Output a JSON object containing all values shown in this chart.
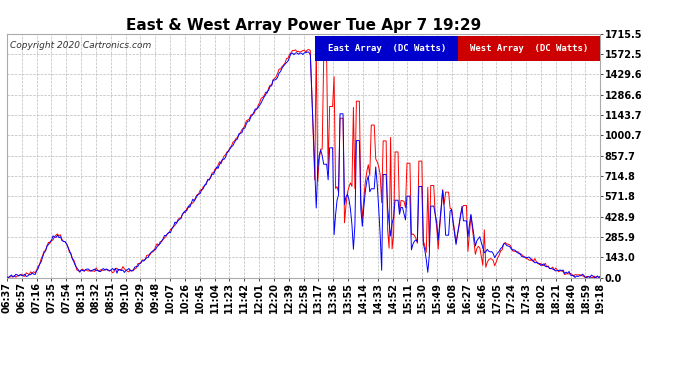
{
  "title": "East & West Array Power Tue Apr 7 19:29",
  "copyright": "Copyright 2020 Cartronics.com",
  "legend_east": "East Array  (DC Watts)",
  "legend_west": "West Array  (DC Watts)",
  "east_color": "#0000ff",
  "west_color": "#ff0000",
  "legend_east_bg": "#0000cc",
  "legend_west_bg": "#cc0000",
  "ymin": 0.0,
  "ymax": 1715.5,
  "yticks": [
    0.0,
    143.0,
    285.9,
    428.9,
    571.8,
    714.8,
    857.7,
    1000.7,
    1143.7,
    1286.6,
    1429.6,
    1572.5,
    1715.5
  ],
  "background_color": "#ffffff",
  "grid_color": "#bbbbbb",
  "title_fontsize": 11,
  "tick_fontsize": 7,
  "label_color": "#000000",
  "x_labels": [
    "06:37",
    "06:57",
    "07:16",
    "07:35",
    "07:54",
    "08:13",
    "08:32",
    "08:51",
    "09:10",
    "09:29",
    "09:48",
    "10:07",
    "10:26",
    "10:45",
    "11:04",
    "11:23",
    "11:42",
    "12:01",
    "12:20",
    "12:39",
    "12:58",
    "13:17",
    "13:36",
    "13:55",
    "14:14",
    "14:33",
    "14:52",
    "15:11",
    "15:30",
    "15:49",
    "16:08",
    "16:27",
    "16:46",
    "17:05",
    "17:24",
    "17:43",
    "18:02",
    "18:21",
    "18:40",
    "18:59",
    "19:18"
  ]
}
